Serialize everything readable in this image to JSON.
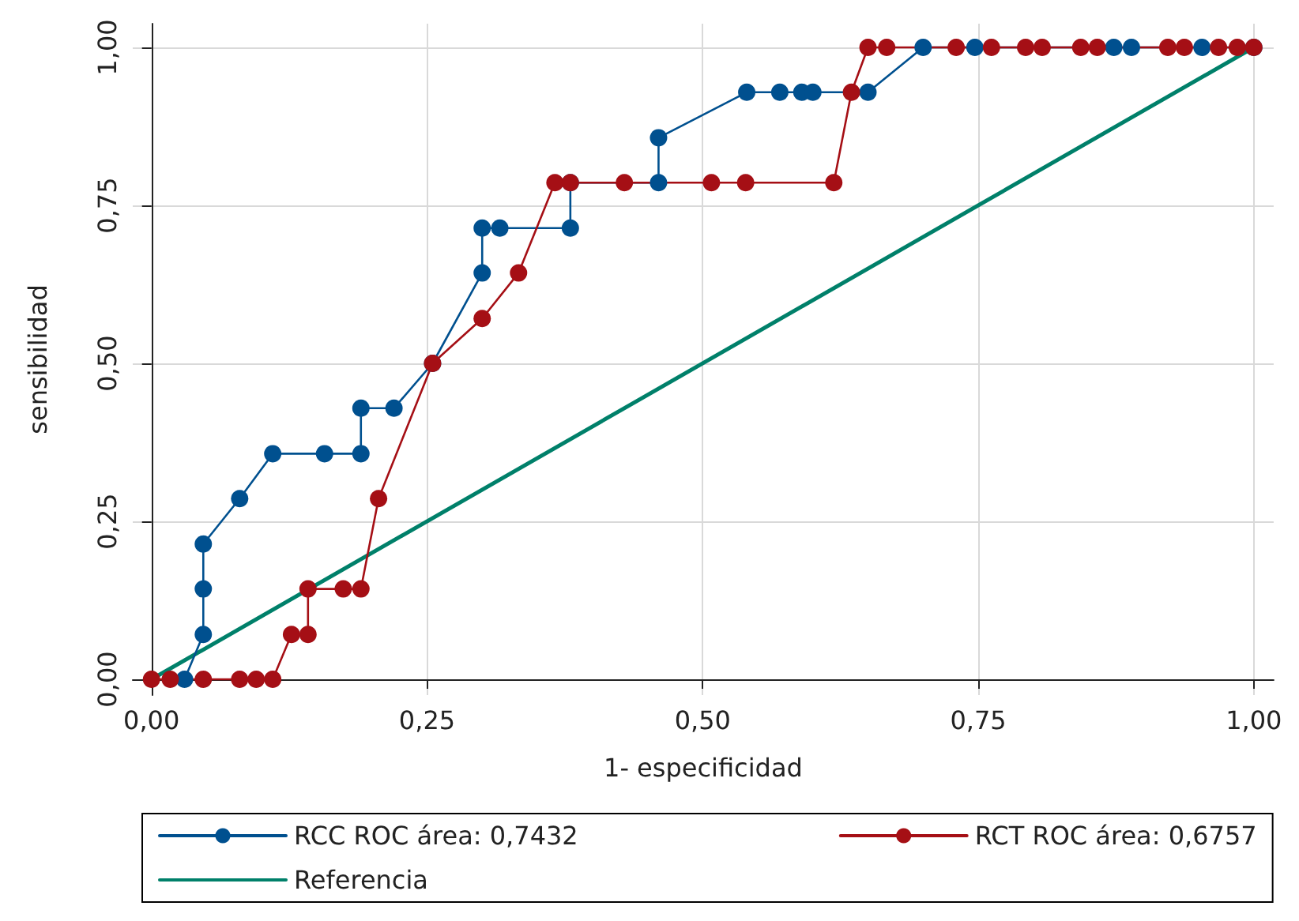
{
  "chart_data": {
    "type": "line",
    "xlabel": "1- especificidad",
    "ylabel": "sensibilidad",
    "xlim": [
      -0.017,
      1.018
    ],
    "ylim": [
      -0.025,
      1.0375
    ],
    "xticks": [
      {
        "value": 0,
        "label": "0,00"
      },
      {
        "value": 0.25,
        "label": "0,25"
      },
      {
        "value": 0.5,
        "label": "0,50"
      },
      {
        "value": 0.75,
        "label": "0,75"
      },
      {
        "value": 1,
        "label": "1,00"
      }
    ],
    "yticks": [
      {
        "value": 0,
        "label": "0,00"
      },
      {
        "value": 0.25,
        "label": "0,25"
      },
      {
        "value": 0.5,
        "label": "0,50"
      },
      {
        "value": 0.75,
        "label": "0,75"
      },
      {
        "value": 1,
        "label": "1,00"
      }
    ],
    "grid": true,
    "legend": "bottom",
    "marker": "circle",
    "line_style": "solid",
    "series": [
      {
        "name": "RCC ROC área: 0,7432",
        "color": "#00508f",
        "x": [
          0.03,
          0.047,
          0.047,
          0.047,
          0.08,
          0.11,
          0.157,
          0.19,
          0.19,
          0.22,
          0.255,
          0.3,
          0.3,
          0.316,
          0.38,
          0.38,
          0.46,
          0.46,
          0.54,
          0.57,
          0.59,
          0.6,
          0.65,
          0.7,
          0.747,
          0.873,
          0.889,
          0.953,
          1
        ],
        "values": [
          0,
          0.071,
          0.143,
          0.214,
          0.286,
          0.357,
          0.357,
          0.357,
          0.429,
          0.429,
          0.5,
          0.643,
          0.714,
          0.714,
          0.714,
          0.786,
          0.786,
          0.857,
          0.929,
          0.929,
          0.929,
          0.929,
          0.929,
          1,
          1,
          1,
          1,
          1,
          1
        ]
      },
      {
        "name": "RCT ROC área: 0,6757",
        "color": "#a50f15",
        "x": [
          0,
          0.017,
          0.047,
          0.08,
          0.095,
          0.11,
          0.127,
          0.142,
          0.142,
          0.174,
          0.19,
          0.206,
          0.255,
          0.3,
          0.333,
          0.366,
          0.38,
          0.429,
          0.508,
          0.539,
          0.619,
          0.635,
          0.65,
          0.667,
          0.73,
          0.762,
          0.793,
          0.808,
          0.843,
          0.858,
          0.922,
          0.937,
          0.968,
          0.985,
          1
        ],
        "values": [
          0,
          0,
          0,
          0,
          0,
          0,
          0.071,
          0.071,
          0.143,
          0.143,
          0.143,
          0.286,
          0.5,
          0.571,
          0.643,
          0.786,
          0.786,
          0.786,
          0.786,
          0.786,
          0.786,
          0.929,
          1,
          1,
          1,
          1,
          1,
          1,
          1,
          1,
          1,
          1,
          1,
          1,
          1
        ]
      },
      {
        "name": "Referencia",
        "color": "#00806a",
        "marker": "none",
        "x": [
          0,
          1
        ],
        "values": [
          0,
          1
        ]
      }
    ]
  }
}
